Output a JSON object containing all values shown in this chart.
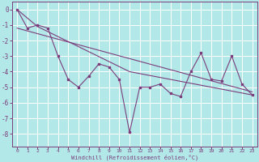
{
  "xlabel": "Windchill (Refroidissement éolien,°C)",
  "line1_x": [
    0,
    1,
    2,
    3,
    4,
    5,
    6,
    7,
    8,
    9,
    10,
    11,
    12,
    13,
    14,
    15,
    16,
    17,
    18,
    19,
    20,
    21,
    22,
    23
  ],
  "line1_y": [
    0,
    -1.2,
    -1.0,
    -1.2,
    -3.0,
    -4.5,
    -5.0,
    -4.3,
    -3.5,
    -3.7,
    -4.5,
    -7.9,
    -5.0,
    -5.0,
    -4.8,
    -5.4,
    -5.6,
    -4.0,
    -2.8,
    -4.5,
    -4.6,
    -3.0,
    -4.8,
    -5.5
  ],
  "line2_x": [
    0,
    2,
    11,
    23
  ],
  "line2_y": [
    0,
    -1.1,
    -4.0,
    -5.5
  ],
  "line3_x": [
    0,
    23
  ],
  "line3_y": [
    -1.2,
    -5.3
  ],
  "line_color": "#7B3D7B",
  "bg_color": "#b2e8e8",
  "grid_color": "#d0f0f0",
  "xlim": [
    -0.5,
    23.5
  ],
  "ylim": [
    -8.8,
    0.5
  ],
  "yticks": [
    0,
    -1,
    -2,
    -3,
    -4,
    -5,
    -6,
    -7,
    -8
  ],
  "xticks": [
    0,
    1,
    2,
    3,
    4,
    5,
    6,
    7,
    8,
    9,
    10,
    11,
    12,
    13,
    14,
    15,
    16,
    17,
    18,
    19,
    20,
    21,
    22,
    23
  ]
}
